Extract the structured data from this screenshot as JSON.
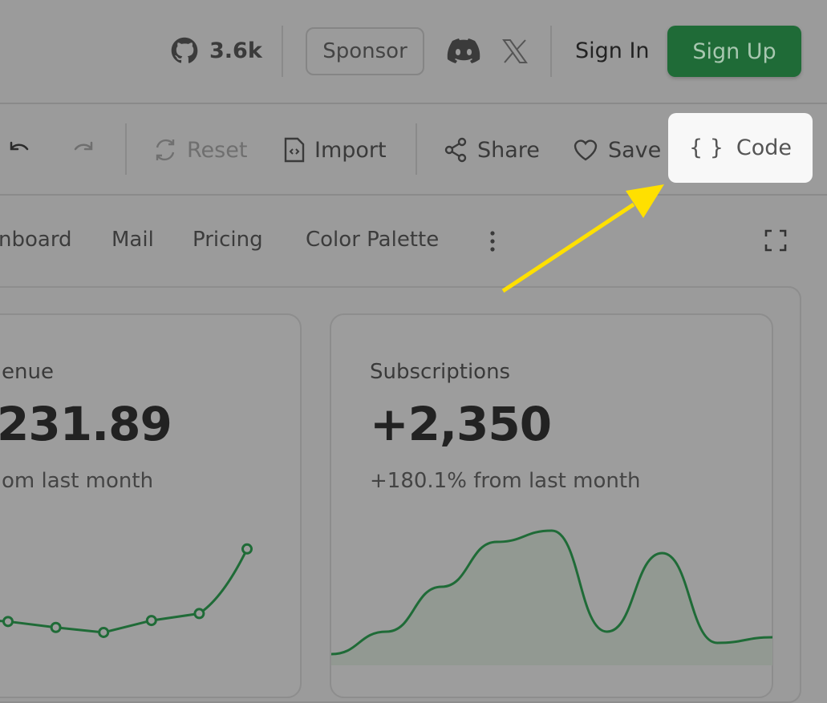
{
  "header": {
    "github_stars": "3.6k",
    "sponsor_label": "Sponsor",
    "sign_in_label": "Sign In",
    "sign_up_label": "Sign Up",
    "accent_color": "#1f6b37"
  },
  "toolbar": {
    "reset_label": "Reset",
    "import_label": "Import",
    "share_label": "Share",
    "save_label": "Save",
    "code_label": "Code",
    "code_icon": "{ }"
  },
  "tabs": [
    {
      "label": "nboard"
    },
    {
      "label": "Mail"
    },
    {
      "label": "Pricing"
    },
    {
      "label": "Color Palette"
    }
  ],
  "cards": [
    {
      "label": "enue",
      "value": "231.89",
      "change": "om last month"
    },
    {
      "label": "Subscriptions",
      "value": "+2,350",
      "change": "+180.1% from last month"
    }
  ],
  "chart_data": [
    {
      "type": "line",
      "values": [
        3.2,
        2.6,
        2.1,
        3.3,
        4.0,
        10.5
      ],
      "color": "#1f6b37"
    },
    {
      "type": "area",
      "values": [
        1,
        3,
        7,
        11,
        12,
        3,
        10,
        2,
        2.5
      ],
      "color": "#1f6b37"
    }
  ],
  "annotation": {
    "arrow_color": "#ffe000"
  }
}
